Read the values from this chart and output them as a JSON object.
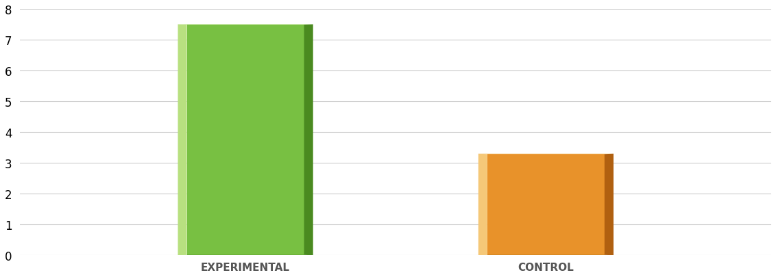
{
  "categories": [
    "EXPERIMENTAL",
    "CONTROL"
  ],
  "values": [
    7.5,
    3.3
  ],
  "bar_face_colors": [
    "#78C042",
    "#E8922A"
  ],
  "bar_light_colors": [
    "#B8E080",
    "#F5C878"
  ],
  "bar_dark_colors": [
    "#4A8A20",
    "#B06010"
  ],
  "bar_bottom_colors": [
    "#3A7015",
    "#906008"
  ],
  "bar_width": 0.18,
  "bevel": 0.012,
  "ylim": [
    0,
    8
  ],
  "yticks": [
    0,
    1,
    2,
    3,
    4,
    5,
    6,
    7,
    8
  ],
  "background_color": "#ffffff",
  "grid_color": "#cccccc",
  "label_fontsize": 11,
  "tick_fontsize": 12,
  "bar_positions": [
    0.3,
    0.7
  ],
  "xlim": [
    0,
    1
  ]
}
